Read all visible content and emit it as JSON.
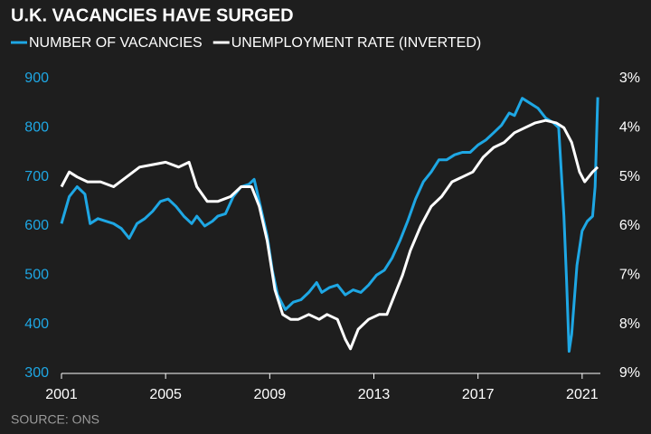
{
  "chart_data": {
    "type": "line",
    "title": "U.K. VACANCIES HAVE SURGED",
    "source": "SOURCE: ONS",
    "xlim": [
      2001,
      2021.7
    ],
    "xticks": [
      2001,
      2005,
      2009,
      2013,
      2017,
      2021
    ],
    "ylim": [
      300,
      900
    ],
    "yticks": [
      300,
      400,
      500,
      600,
      700,
      800,
      900
    ],
    "y2lim": [
      3,
      9
    ],
    "y2_inverted": true,
    "y2ticks": [
      {
        "value": 3,
        "label": "3%"
      },
      {
        "value": 4,
        "label": "4%"
      },
      {
        "value": 5,
        "label": "5%"
      },
      {
        "value": 6,
        "label": "6%"
      },
      {
        "value": 7,
        "label": "7%"
      },
      {
        "value": 8,
        "label": "8%"
      },
      {
        "value": 9,
        "label": "9%"
      }
    ],
    "grid": false,
    "series": [
      {
        "name": "NUMBER OF VACANCIES",
        "color": "#1ea7e4",
        "x": [
          2001.0,
          2001.3,
          2001.6,
          2001.9,
          2002.1,
          2002.4,
          2002.7,
          2003.0,
          2003.3,
          2003.6,
          2003.9,
          2004.2,
          2004.5,
          2004.8,
          2005.1,
          2005.4,
          2005.7,
          2006.0,
          2006.2,
          2006.5,
          2006.8,
          2007.0,
          2007.3,
          2007.6,
          2007.9,
          2008.2,
          2008.4,
          2008.6,
          2008.9,
          2009.1,
          2009.3,
          2009.6,
          2009.9,
          2010.2,
          2010.5,
          2010.8,
          2011.0,
          2011.3,
          2011.6,
          2011.9,
          2012.2,
          2012.5,
          2012.8,
          2013.1,
          2013.4,
          2013.7,
          2014.0,
          2014.3,
          2014.6,
          2014.9,
          2015.2,
          2015.5,
          2015.8,
          2016.1,
          2016.4,
          2016.7,
          2017.0,
          2017.3,
          2017.6,
          2017.9,
          2018.2,
          2018.4,
          2018.7,
          2019.0,
          2019.3,
          2019.6,
          2019.9,
          2020.1,
          2020.3,
          2020.4,
          2020.5,
          2020.6,
          2020.8,
          2021.0,
          2021.2,
          2021.4,
          2021.5,
          2021.6
        ],
        "values": [
          605,
          660,
          680,
          665,
          605,
          615,
          610,
          605,
          595,
          575,
          605,
          615,
          630,
          650,
          655,
          640,
          620,
          605,
          620,
          600,
          610,
          620,
          625,
          660,
          680,
          685,
          695,
          650,
          580,
          510,
          460,
          430,
          445,
          450,
          465,
          485,
          465,
          475,
          480,
          460,
          470,
          465,
          480,
          500,
          510,
          535,
          570,
          610,
          655,
          690,
          710,
          735,
          735,
          745,
          750,
          750,
          765,
          775,
          790,
          805,
          830,
          825,
          860,
          850,
          840,
          820,
          810,
          800,
          620,
          490,
          345,
          380,
          520,
          590,
          610,
          620,
          680,
          862
        ]
      },
      {
        "name": "UNEMPLOYMENT RATE (INVERTED)",
        "color": "#ffffff",
        "axis": "y2",
        "x": [
          2001.0,
          2001.3,
          2001.6,
          2002.0,
          2002.5,
          2003.0,
          2003.5,
          2004.0,
          2004.5,
          2005.0,
          2005.5,
          2005.9,
          2006.2,
          2006.6,
          2007.0,
          2007.5,
          2007.9,
          2008.3,
          2008.6,
          2008.9,
          2009.2,
          2009.5,
          2009.8,
          2010.1,
          2010.5,
          2010.9,
          2011.2,
          2011.6,
          2011.9,
          2012.1,
          2012.4,
          2012.8,
          2013.2,
          2013.5,
          2013.8,
          2014.1,
          2014.4,
          2014.8,
          2015.2,
          2015.6,
          2016.0,
          2016.4,
          2016.8,
          2017.2,
          2017.6,
          2018.0,
          2018.4,
          2018.8,
          2019.2,
          2019.6,
          2020.0,
          2020.3,
          2020.6,
          2020.9,
          2021.1,
          2021.4,
          2021.6
        ],
        "values": [
          5.2,
          4.9,
          5.0,
          5.1,
          5.1,
          5.2,
          5.0,
          4.8,
          4.75,
          4.7,
          4.8,
          4.7,
          5.2,
          5.5,
          5.5,
          5.4,
          5.2,
          5.2,
          5.6,
          6.3,
          7.3,
          7.8,
          7.9,
          7.9,
          7.8,
          7.9,
          7.8,
          7.9,
          8.3,
          8.5,
          8.1,
          7.9,
          7.8,
          7.8,
          7.4,
          7.0,
          6.5,
          6.0,
          5.6,
          5.4,
          5.1,
          5.0,
          4.9,
          4.6,
          4.4,
          4.3,
          4.1,
          4.0,
          3.9,
          3.85,
          3.9,
          4.0,
          4.3,
          4.9,
          5.1,
          4.9,
          4.8
        ]
      }
    ]
  }
}
